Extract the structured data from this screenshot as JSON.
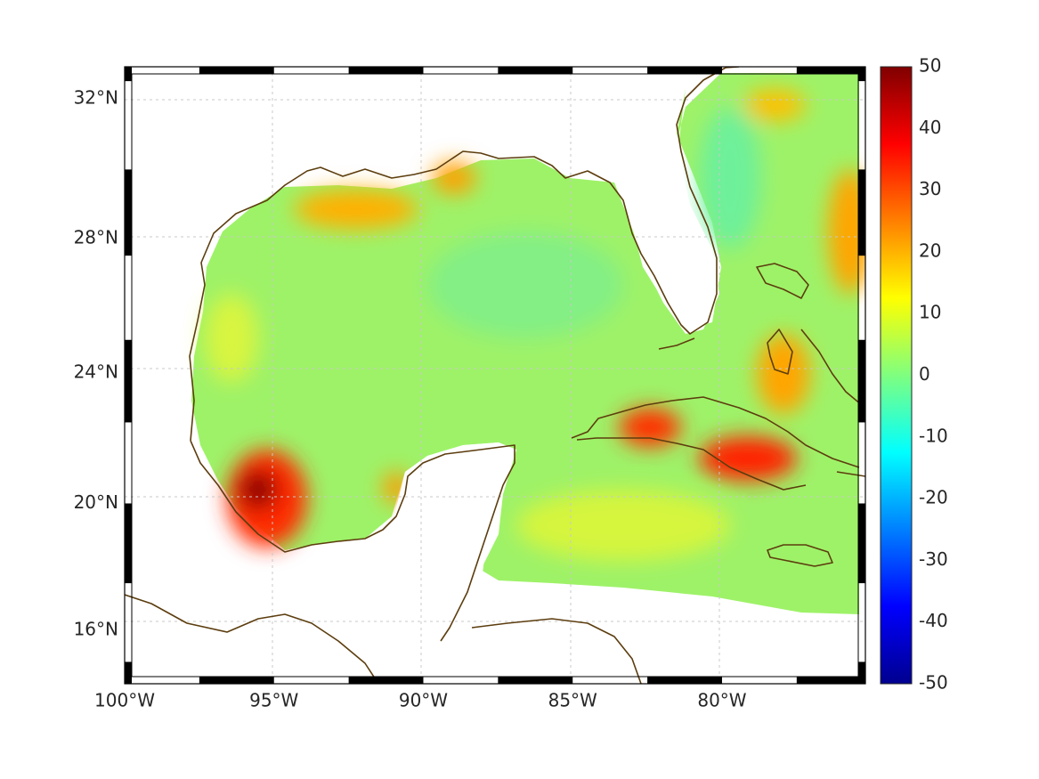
{
  "map": {
    "projection": "mercator",
    "lon_range": [
      -100,
      -75.2
    ],
    "lat_range": [
      14.3,
      32.9
    ],
    "grid": true,
    "frame": "black-white checkered border",
    "coastline_color": "#5c3d0e"
  },
  "axes": {
    "x_ticks": [
      {
        "value": -100,
        "label": "100°W"
      },
      {
        "value": -95,
        "label": "95°W"
      },
      {
        "value": -90,
        "label": "90°W"
      },
      {
        "value": -85,
        "label": "85°W"
      },
      {
        "value": -80,
        "label": "80°W"
      }
    ],
    "y_ticks": [
      {
        "value": 16,
        "label": "16°N"
      },
      {
        "value": 20,
        "label": "20°N"
      },
      {
        "value": 24,
        "label": "24°N"
      },
      {
        "value": 28,
        "label": "28°N"
      },
      {
        "value": 32,
        "label": "32°N"
      }
    ]
  },
  "colorbar": {
    "colormap": "jet",
    "range": [
      -50,
      50
    ],
    "labels": [
      "50",
      "40",
      "30",
      "20",
      "10",
      "0",
      "-10",
      "-20",
      "-30",
      "-40",
      "-50"
    ]
  },
  "field_hotspots": [
    {
      "region": "Bay of Campeche coast",
      "lon": -95.7,
      "lat": 20.2,
      "value": 50
    },
    {
      "region": "central Cuba",
      "lon": -79.5,
      "lat": 21.3,
      "value": 38
    },
    {
      "region": "western Cuba",
      "lon": -82.3,
      "lat": 22.3,
      "value": 35
    },
    {
      "region": "Louisiana coast",
      "lon": -92.5,
      "lat": 29.2,
      "value": 18
    },
    {
      "region": "Bahamas",
      "lon": -77.5,
      "lat": 24.0,
      "value": 22
    },
    {
      "region": "Atlantic east edge",
      "lon": -75.5,
      "lat": 28.0,
      "value": 22
    },
    {
      "region": "off Georgia coast",
      "lon": -79.0,
      "lat": 32.0,
      "value": 20
    }
  ],
  "field_background_value": 5
}
